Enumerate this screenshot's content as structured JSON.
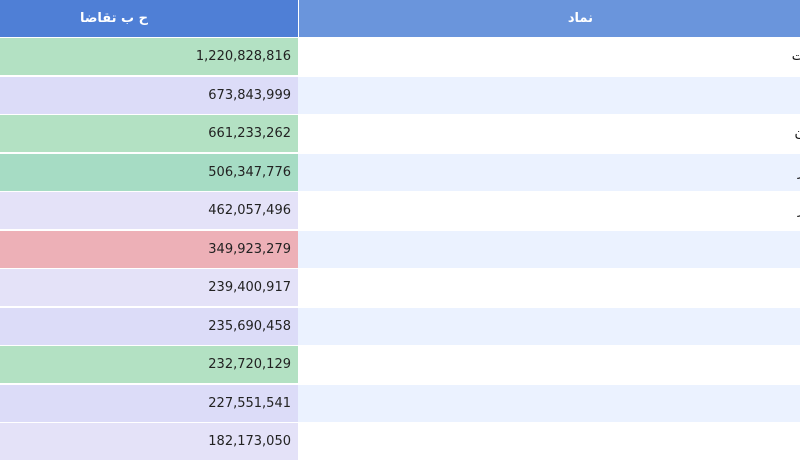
{
  "header": {
    "volume_label": "ح ب تقاضا",
    "symbol_label": "نماد"
  },
  "colors": {
    "header_volume_bg": "#4f7fd6",
    "header_symbol_bg": "#6a95dc",
    "green": "#b3e1c3",
    "green_dark": "#a6dcc4",
    "lavender": "#dcdcf8",
    "lavender_light": "#e4e2f8",
    "red": "#edb0b7",
    "row_white": "#ffffff",
    "row_blue": "#ebf2ff"
  },
  "rows": [
    {
      "volume": "1,220,828,816",
      "symbol": "ت",
      "vol_color": "#b3e1c3",
      "sym_color": "#ffffff"
    },
    {
      "volume": "673,843,999",
      "symbol": "",
      "vol_color": "#dcdcf8",
      "sym_color": "#ebf2ff"
    },
    {
      "volume": "661,233,262",
      "symbol": "ن",
      "vol_color": "#b3e1c3",
      "sym_color": "#ffffff"
    },
    {
      "volume": "506,347,776",
      "symbol": "ر",
      "vol_color": "#a6dcc4",
      "sym_color": "#ebf2ff"
    },
    {
      "volume": "462,057,496",
      "symbol": "ر",
      "vol_color": "#e4e2f8",
      "sym_color": "#ffffff"
    },
    {
      "volume": "349,923,279",
      "symbol": "",
      "vol_color": "#edb0b7",
      "sym_color": "#ebf2ff"
    },
    {
      "volume": "239,400,917",
      "symbol": "",
      "vol_color": "#e4e2f8",
      "sym_color": "#ffffff"
    },
    {
      "volume": "235,690,458",
      "symbol": "",
      "vol_color": "#dcdcf8",
      "sym_color": "#ebf2ff"
    },
    {
      "volume": "232,720,129",
      "symbol": "",
      "vol_color": "#b3e1c3",
      "sym_color": "#ffffff"
    },
    {
      "volume": "227,551,541",
      "symbol": "",
      "vol_color": "#dcdcf8",
      "sym_color": "#ebf2ff"
    },
    {
      "volume": "182,173,050",
      "symbol": "",
      "vol_color": "#e4e2f8",
      "sym_color": "#ffffff"
    }
  ]
}
